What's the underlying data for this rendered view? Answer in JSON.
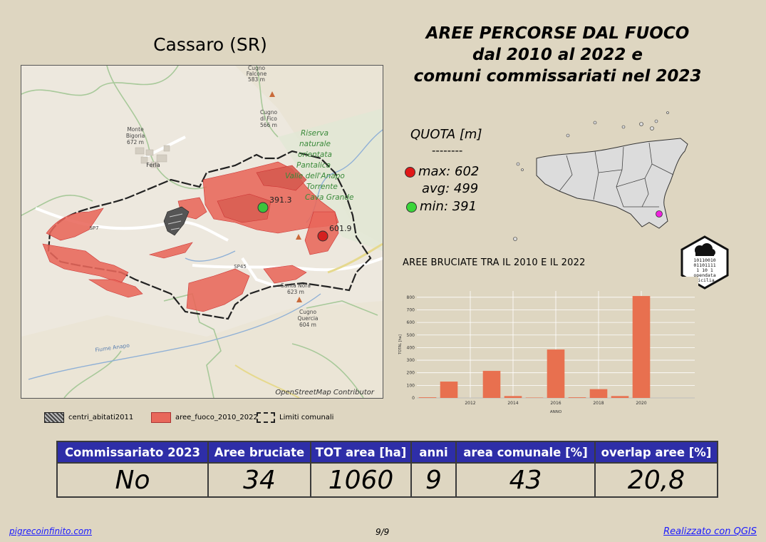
{
  "map": {
    "title": "Cassaro (SR)",
    "credit": "OpenStreetMap Contributor",
    "labels": {
      "ferla": "Ferla",
      "riserva": [
        "Riserva",
        "naturale",
        "orientata",
        "Pantalica",
        "Valle dell'Anapo",
        "Torrente",
        "Cava Grande"
      ],
      "monte_bigoria": [
        "Monte",
        "Bigoria",
        "672 m"
      ],
      "cugno_fico": [
        "Cugno",
        "di Fico",
        "566 m"
      ],
      "cugno_falcone": [
        "Cugno",
        "Falcone",
        "583 m"
      ],
      "cugno_quercia": [
        "Cugno",
        "Quercia",
        "604 m"
      ],
      "santa_nora": [
        "Santa Nora",
        "623 m"
      ],
      "sp7": "SP7",
      "sp45": "SP45",
      "fiume_anapo": "Fiume Anapo",
      "max_label": "601.9",
      "min_label": "391.3"
    },
    "colors": {
      "fire": "#e8675a",
      "border": "#222222",
      "max": "#d42020",
      "min": "#3cc43c"
    }
  },
  "legend": [
    {
      "label": "centri_abitati2011",
      "icon": "hatched-square"
    },
    {
      "label": "aree_fuoco_2010_2022",
      "icon": "red-square"
    },
    {
      "label": "Limiti comunali",
      "icon": "dashed-square"
    }
  ],
  "header": {
    "title_lines": [
      "AREE PERCORSE DAL FUOCO",
      "dal 2010 al 2022 e",
      "comuni commissariati nel 2023"
    ]
  },
  "quota": {
    "title": "QUOTA [m]",
    "separator": "--------",
    "max": "max: 602",
    "avg": "avg: 499",
    "min": "min: 391",
    "colors": {
      "max": "#e01818",
      "min": "#3ad63a",
      "location": "#ee22dd"
    }
  },
  "badge": {
    "lines": [
      "10110010",
      "01101111",
      "1 10 1",
      "opendata",
      "sicilia"
    ],
    "icon": "cloud-icon"
  },
  "chart_data": {
    "type": "bar",
    "title": "AREE BRUCIATE TRA IL 2010 E IL 2022",
    "xlabel": "ANNO",
    "ylabel": "TOTAL [ha]",
    "categories": [
      "2010",
      "2011",
      "2012",
      "2013",
      "2014",
      "2015",
      "2016",
      "2017",
      "2018",
      "2019",
      "2020",
      "2021",
      "2022"
    ],
    "values": [
      5,
      130,
      0,
      215,
      15,
      3,
      385,
      5,
      70,
      15,
      810,
      0,
      0
    ],
    "x_ticks": [
      "2012",
      "2014",
      "2016",
      "2018",
      "2020"
    ],
    "y_ticks": [
      "0",
      "100",
      "200",
      "300",
      "400",
      "500",
      "600",
      "700",
      "800"
    ],
    "ylim": [
      0,
      850
    ],
    "grid": true,
    "bar_color": "#e8704f"
  },
  "stats": {
    "headers": [
      "Commissariato 2023",
      "Aree bruciate",
      "TOT area [ha]",
      "anni",
      "area comunale [%]",
      "overlap aree [%]"
    ],
    "values": [
      "No",
      "34",
      "1060",
      "9",
      "43",
      "20,8"
    ]
  },
  "footer": {
    "left": "pigrecoinfinito.com",
    "page": "9/9",
    "right": "Realizzato con QGIS"
  }
}
